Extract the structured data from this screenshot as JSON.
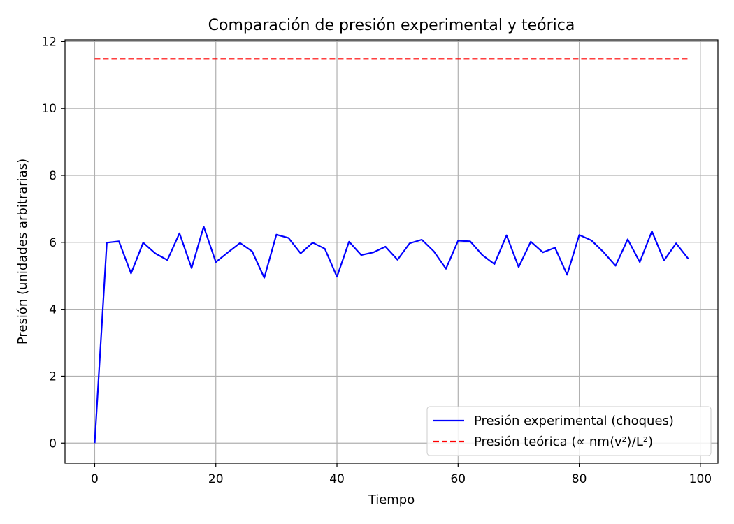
{
  "chart_data": {
    "type": "line",
    "title": "Comparación de presión experimental y teórica",
    "xlabel": "Tiempo",
    "ylabel": "Presión (unidades arbitrarias)",
    "xlim": [
      -4.9,
      102.9
    ],
    "ylim": [
      -0.6,
      12.05
    ],
    "xticks": [
      0,
      20,
      40,
      60,
      80,
      100
    ],
    "yticks": [
      0,
      2,
      4,
      6,
      8,
      10,
      12
    ],
    "grid": true,
    "legend_position": "bottom-right",
    "series": [
      {
        "name": "Presión experimental (choques)",
        "color": "#0000ff",
        "style": "solid",
        "x": [
          0,
          2,
          4,
          6,
          8,
          10,
          12,
          14,
          16,
          18,
          20,
          22,
          24,
          26,
          28,
          30,
          32,
          34,
          36,
          38,
          40,
          42,
          44,
          46,
          48,
          50,
          52,
          54,
          56,
          58,
          60,
          62,
          64,
          66,
          68,
          70,
          72,
          74,
          76,
          78,
          80,
          82,
          84,
          86,
          88,
          90,
          92,
          94,
          96,
          98
        ],
        "y": [
          0.0,
          5.99,
          6.03,
          5.07,
          5.99,
          5.67,
          5.47,
          6.27,
          5.23,
          6.47,
          5.41,
          5.7,
          5.98,
          5.73,
          4.94,
          6.23,
          6.13,
          5.67,
          5.99,
          5.81,
          4.97,
          6.02,
          5.62,
          5.7,
          5.87,
          5.48,
          5.97,
          6.08,
          5.73,
          5.21,
          6.05,
          6.03,
          5.62,
          5.35,
          6.21,
          5.26,
          6.02,
          5.7,
          5.84,
          5.03,
          6.22,
          6.06,
          5.71,
          5.3,
          6.09,
          5.41,
          6.33,
          5.46,
          5.97,
          5.51
        ]
      },
      {
        "name": "Presión teórica (∝ nm⟨v²⟩/L²)",
        "color": "#ff0000",
        "style": "dashed",
        "x": [
          0,
          98
        ],
        "y": [
          11.48,
          11.48
        ]
      }
    ]
  }
}
